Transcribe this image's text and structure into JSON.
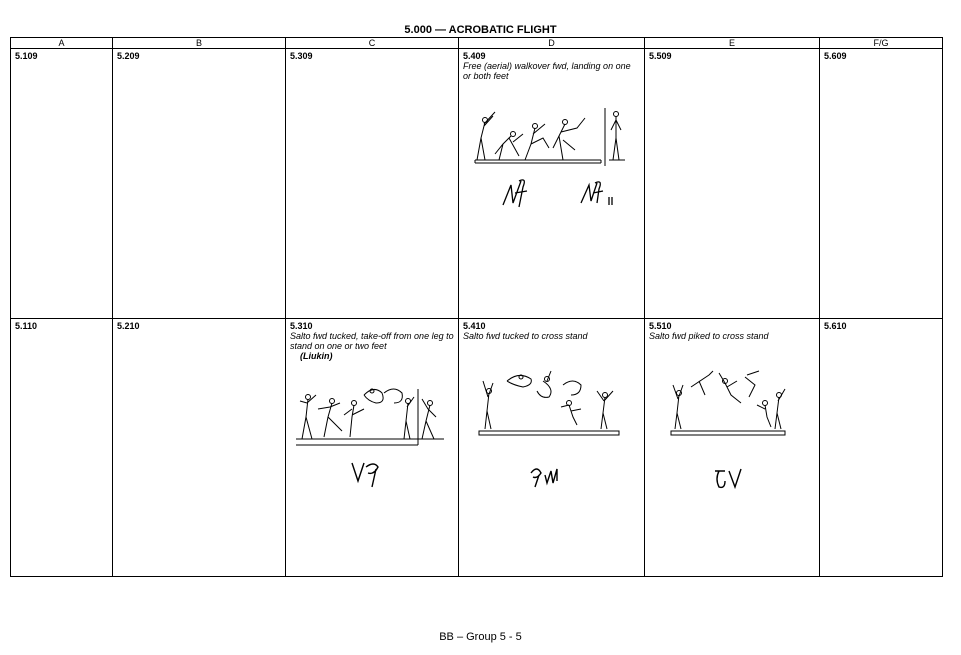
{
  "page_title": "5.000 — ACROBATIC FLIGHT",
  "columns": [
    "A",
    "B",
    "C",
    "D",
    "E",
    "F/G"
  ],
  "rows": [
    {
      "cells": [
        {
          "code": "5.109"
        },
        {
          "code": "5.209"
        },
        {
          "code": "5.309"
        },
        {
          "code": "5.409",
          "description": "Free (aerial) walkover fwd, landing on one or both feet"
        },
        {
          "code": "5.509"
        },
        {
          "code": "5.609"
        }
      ]
    },
    {
      "cells": [
        {
          "code": "5.110"
        },
        {
          "code": "5.210"
        },
        {
          "code": "5.310",
          "description": "Salto fwd tucked, take-off from one leg to stand on one or two feet",
          "name": "(Liukin)"
        },
        {
          "code": "5.410",
          "description": "Salto fwd tucked to cross stand"
        },
        {
          "code": "5.510",
          "description": "Salto fwd piked to cross stand"
        },
        {
          "code": "5.610"
        }
      ]
    }
  ],
  "footer": "BB – Group 5 - 5"
}
